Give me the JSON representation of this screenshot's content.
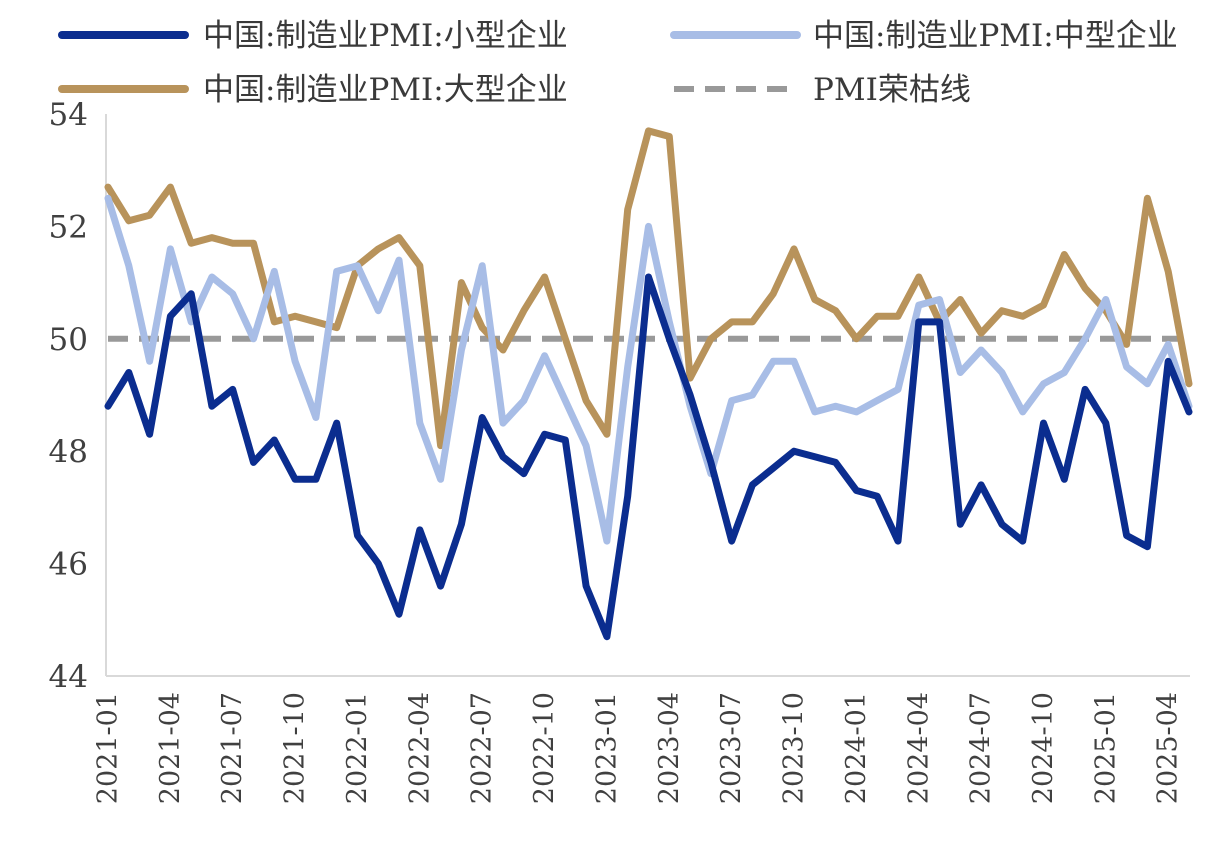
{
  "chart_data": {
    "type": "line",
    "title": "",
    "xlabel": "",
    "ylabel": "",
    "ylim": [
      44,
      54
    ],
    "yticks": [
      44,
      46,
      48,
      50,
      52,
      54
    ],
    "ytick_labels": [
      "44",
      "46",
      "48",
      "50",
      "52",
      "54"
    ],
    "xtick_labels": [
      "2021-01",
      "2021-04",
      "2021-07",
      "2021-10",
      "2022-01",
      "2022-04",
      "2022-07",
      "2022-10",
      "2023-01",
      "2023-04",
      "2023-07",
      "2023-10",
      "2024-01",
      "2024-04",
      "2024-07",
      "2024-10",
      "2025-01",
      "2025-04"
    ],
    "x": [
      "2021-01",
      "2021-02",
      "2021-03",
      "2021-04",
      "2021-05",
      "2021-06",
      "2021-07",
      "2021-08",
      "2021-09",
      "2021-10",
      "2021-11",
      "2021-12",
      "2022-01",
      "2022-02",
      "2022-03",
      "2022-04",
      "2022-05",
      "2022-06",
      "2022-07",
      "2022-08",
      "2022-09",
      "2022-10",
      "2022-11",
      "2022-12",
      "2023-01",
      "2023-02",
      "2023-03",
      "2023-04",
      "2023-05",
      "2023-06",
      "2023-07",
      "2023-08",
      "2023-09",
      "2023-10",
      "2023-11",
      "2023-12",
      "2024-01",
      "2024-02",
      "2024-03",
      "2024-04",
      "2024-05",
      "2024-06",
      "2024-07",
      "2024-08",
      "2024-09",
      "2024-10",
      "2024-11",
      "2024-12",
      "2025-01",
      "2025-02",
      "2025-03",
      "2025-04",
      "2025-05"
    ],
    "series": [
      {
        "name": "中国:制造业PMI:小型企业",
        "color": "#0b2d8f",
        "dash": false,
        "values": [
          48.8,
          49.4,
          48.3,
          50.4,
          50.8,
          48.8,
          49.1,
          47.8,
          48.2,
          47.5,
          47.5,
          48.5,
          46.5,
          46.0,
          45.1,
          46.6,
          45.6,
          46.7,
          48.6,
          47.9,
          47.6,
          48.3,
          48.2,
          45.6,
          44.7,
          47.2,
          51.1,
          50.0,
          49.0,
          47.8,
          46.4,
          47.4,
          47.7,
          48.0,
          47.9,
          47.8,
          47.3,
          47.2,
          46.4,
          50.3,
          50.3,
          46.7,
          47.4,
          46.7,
          46.4,
          48.5,
          47.5,
          49.1,
          48.5,
          46.5,
          46.3,
          49.6,
          48.7
        ]
      },
      {
        "name": "中国:制造业PMI:中型企业",
        "color": "#a8bde6",
        "dash": false,
        "values": [
          52.5,
          51.3,
          49.6,
          51.6,
          50.3,
          51.1,
          50.8,
          50.0,
          51.2,
          49.6,
          48.6,
          51.2,
          51.3,
          50.5,
          51.4,
          48.5,
          47.5,
          49.8,
          51.3,
          48.5,
          48.9,
          49.7,
          48.9,
          48.1,
          46.4,
          49.5,
          52.0,
          50.3,
          48.8,
          47.6,
          48.9,
          49.0,
          49.6,
          49.6,
          48.7,
          48.8,
          48.7,
          48.9,
          49.1,
          50.6,
          50.7,
          49.4,
          49.8,
          49.4,
          48.7,
          49.2,
          49.4,
          50.0,
          50.7,
          49.5,
          49.2,
          49.9,
          48.8
        ]
      },
      {
        "name": "中国:制造业PMI:大型企业",
        "color": "#b8935b",
        "dash": false,
        "values": [
          52.7,
          52.1,
          52.2,
          52.7,
          51.7,
          51.8,
          51.7,
          51.7,
          50.3,
          50.4,
          50.3,
          50.2,
          51.3,
          51.6,
          51.8,
          51.3,
          48.1,
          51.0,
          50.2,
          49.8,
          50.5,
          51.1,
          50.0,
          48.9,
          48.3,
          52.3,
          53.7,
          53.6,
          49.3,
          50.0,
          50.3,
          50.3,
          50.8,
          51.6,
          50.7,
          50.5,
          50.0,
          50.4,
          50.4,
          51.1,
          50.3,
          50.7,
          50.1,
          50.5,
          50.4,
          50.6,
          51.5,
          50.9,
          50.5,
          49.9,
          52.5,
          51.2,
          49.2
        ]
      },
      {
        "name": "PMI荣枯线",
        "color": "#999999",
        "dash": true,
        "values": [
          50,
          50,
          50,
          50,
          50,
          50,
          50,
          50,
          50,
          50,
          50,
          50,
          50,
          50,
          50,
          50,
          50,
          50,
          50,
          50,
          50,
          50,
          50,
          50,
          50,
          50,
          50,
          50,
          50,
          50,
          50,
          50,
          50,
          50,
          50,
          50,
          50,
          50,
          50,
          50,
          50,
          50,
          50,
          50,
          50,
          50,
          50,
          50,
          50,
          50,
          50,
          50,
          50
        ]
      }
    ],
    "legend_position": "top",
    "grid": false
  }
}
